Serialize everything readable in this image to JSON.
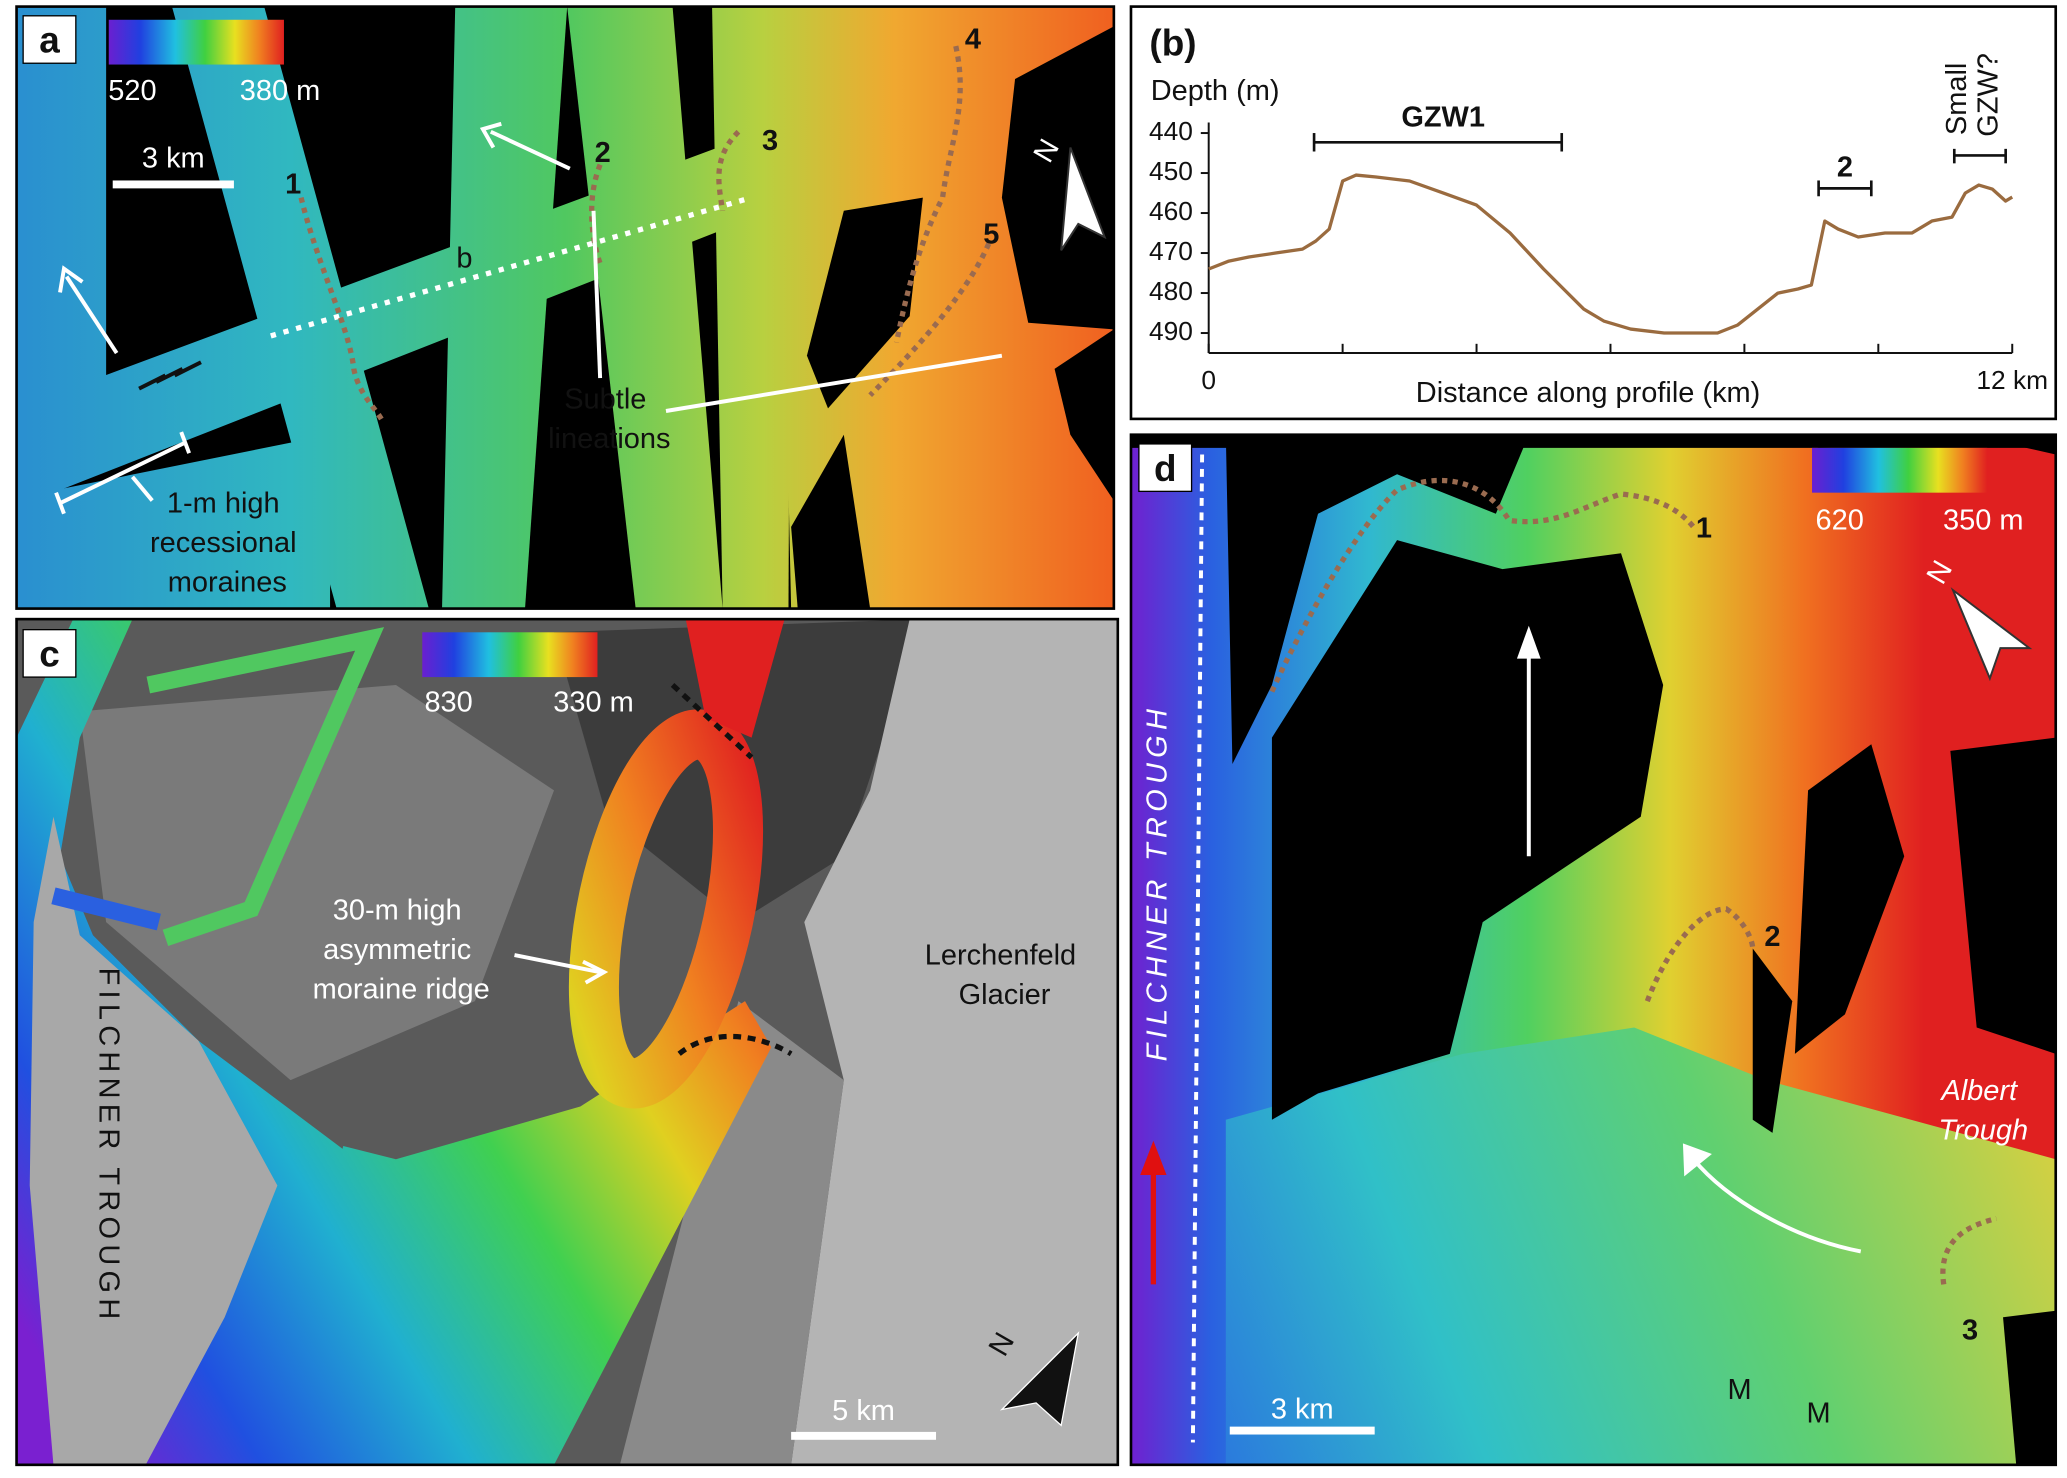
{
  "panel_a": {
    "label": "a",
    "colorbar_min": "520",
    "colorbar_max": "380 m",
    "scale_bar": "3 km",
    "north": "N",
    "profile_label": "b",
    "crest_labels": [
      "1",
      "2",
      "3",
      "4",
      "5"
    ],
    "lineations_label": [
      "Subtle",
      "lineations"
    ],
    "moraines_label": [
      "1-m high",
      "recessional",
      "moraines"
    ]
  },
  "panel_c": {
    "label": "c",
    "colorbar_min": "830",
    "colorbar_max": "330 m",
    "moraine_label": [
      "30-m high",
      "asymmetric",
      "moraine ridge"
    ],
    "glacier_label": [
      "Lerchenfeld",
      "Glacier"
    ],
    "trough_label": "FILCHNER TROUGH",
    "scale_bar": "5 km",
    "north": "N"
  },
  "panel_d": {
    "label": "d",
    "colorbar_min": "620",
    "colorbar_max": "350 m",
    "crest_labels": [
      "1",
      "2",
      "3"
    ],
    "trough_label": "FILCHNER TROUGH",
    "albert_label": [
      "Albert",
      "Trough"
    ],
    "scale_bar": "3 km",
    "moraine_marks": [
      "M",
      "M"
    ],
    "north": "N"
  },
  "chart_data": {
    "type": "line",
    "title": "(b)",
    "y_label": "Depth (m)",
    "x_label": "Distance along profile (km)",
    "xlim": [
      0,
      12
    ],
    "ylim": [
      440,
      495
    ],
    "y_inverted": true,
    "xticks": [
      0,
      {
        "value": 12,
        "label": "12 km"
      }
    ],
    "x_minor_ticks": [
      2,
      4,
      6,
      8,
      10
    ],
    "yticks": [
      440,
      450,
      460,
      470,
      480,
      490
    ],
    "color": "#9a6b3f",
    "x": [
      0,
      0.3,
      0.6,
      1.0,
      1.4,
      1.6,
      1.8,
      2.0,
      2.2,
      2.5,
      3.0,
      3.5,
      4.0,
      4.5,
      5.0,
      5.3,
      5.6,
      5.9,
      6.3,
      6.8,
      7.2,
      7.6,
      7.9,
      8.2,
      8.5,
      8.8,
      9.0,
      9.1,
      9.2,
      9.4,
      9.7,
      10.1,
      10.5,
      10.8,
      11.1,
      11.3,
      11.5,
      11.7,
      11.9,
      12.0
    ],
    "values": [
      474,
      472,
      471,
      470,
      469,
      467,
      464,
      452,
      450.5,
      451,
      452,
      455,
      458,
      465,
      474,
      479,
      484,
      487,
      489,
      490,
      490,
      490,
      488,
      484,
      480,
      479,
      478,
      470,
      462,
      464,
      466,
      465,
      465,
      462,
      461,
      455,
      453,
      454,
      457,
      456
    ],
    "annotations": {
      "gzw1": "GZW1",
      "gzw2": "2",
      "small_gzw": [
        "Small",
        "GZW?"
      ]
    }
  }
}
